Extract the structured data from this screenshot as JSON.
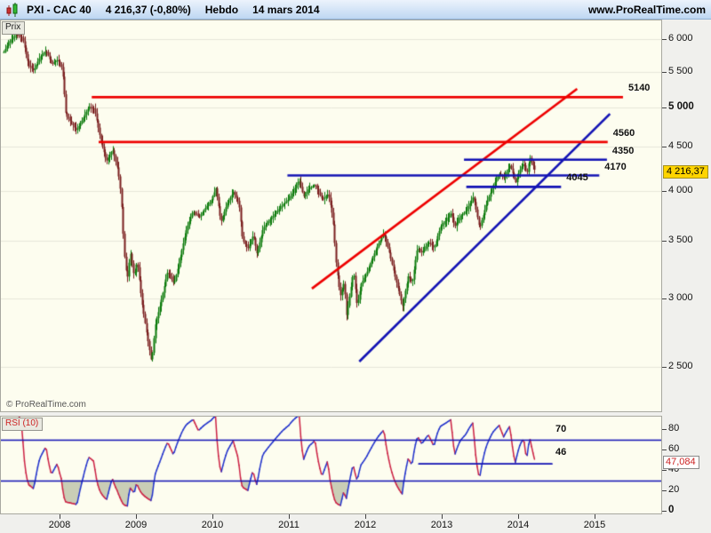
{
  "title_bar": {
    "icon": "candlestick-icon",
    "symbol": "PXI - CAC 40",
    "price_change": "4 216,37 (-0,80%)",
    "timeframe": "Hebdo",
    "date": "14 mars 2014",
    "website": "www.ProRealTime.com"
  },
  "price_panel": {
    "tab_label": "Prix",
    "copyright": "© ProRealTime.com",
    "current_price_label": "4 216,37"
  },
  "rsi_panel": {
    "tab_label": "RSI (10)",
    "current_value_label": "47,084"
  },
  "chart_data": {
    "type": "candlestick",
    "title": "PXI - CAC 40 Hebdo (weekly) with trend lines, horizontal levels and RSI(10)",
    "instrument": "CAC 40",
    "timeframe": "weekly",
    "as_of": "14 mars 2014",
    "last_close": 4216.37,
    "colors": {
      "candle_up": "#0a7a0a",
      "candle_down": "#7a1e1e",
      "blue_line": "#1212b4",
      "red_line": "#ee0000",
      "rsi_up": "#2233cc",
      "rsi_down": "#cc2244",
      "rsi_oversold_fill": "rgba(150,160,125,0.5)",
      "grid": "#e7e7da",
      "badge_bg": "#ffd400"
    },
    "x_axis": {
      "range": [
        2007.22,
        2015.88
      ],
      "ticks": [
        {
          "label": "2008",
          "value": 2008
        },
        {
          "label": "2009",
          "value": 2009
        },
        {
          "label": "2010",
          "value": 2010
        },
        {
          "label": "2011",
          "value": 2011
        },
        {
          "label": "2012",
          "value": 2012
        },
        {
          "label": "2013",
          "value": 2013
        },
        {
          "label": "2014",
          "value": 2014
        },
        {
          "label": "2015",
          "value": 2015
        }
      ]
    },
    "y_axis": {
      "scale": "log",
      "range": [
        2330,
        6400
      ],
      "grid": true,
      "ticks": [
        {
          "label": "6 000",
          "value": 6000,
          "bold": false
        },
        {
          "label": "5 500",
          "value": 5500,
          "bold": false
        },
        {
          "label": "5 000",
          "value": 5000,
          "bold": true
        },
        {
          "label": "4 500",
          "value": 4500,
          "bold": false
        },
        {
          "label": "4 000",
          "value": 4000,
          "bold": false
        },
        {
          "label": "3 500",
          "value": 3500,
          "bold": false
        },
        {
          "label": "3 000",
          "value": 3000,
          "bold": false
        },
        {
          "label": "2 500",
          "value": 2500,
          "bold": false
        }
      ]
    },
    "price_anchors": [
      [
        2007.26,
        5800
      ],
      [
        2007.32,
        5950
      ],
      [
        2007.42,
        6080
      ],
      [
        2007.5,
        6020
      ],
      [
        2007.58,
        5600
      ],
      [
        2007.65,
        5520
      ],
      [
        2007.73,
        5720
      ],
      [
        2007.81,
        5820
      ],
      [
        2007.88,
        5620
      ],
      [
        2007.96,
        5680
      ],
      [
        2008.02,
        5550
      ],
      [
        2008.07,
        4900
      ],
      [
        2008.13,
        4820
      ],
      [
        2008.21,
        4700
      ],
      [
        2008.29,
        4850
      ],
      [
        2008.37,
        5010
      ],
      [
        2008.44,
        4980
      ],
      [
        2008.52,
        4600
      ],
      [
        2008.6,
        4330
      ],
      [
        2008.68,
        4470
      ],
      [
        2008.75,
        4230
      ],
      [
        2008.79,
        3950
      ],
      [
        2008.83,
        3400
      ],
      [
        2008.87,
        3150
      ],
      [
        2008.91,
        3400
      ],
      [
        2008.96,
        3180
      ],
      [
        2009.0,
        3320
      ],
      [
        2009.06,
        2980
      ],
      [
        2009.12,
        2760
      ],
      [
        2009.19,
        2530
      ],
      [
        2009.24,
        2800
      ],
      [
        2009.31,
        2970
      ],
      [
        2009.4,
        3230
      ],
      [
        2009.48,
        3120
      ],
      [
        2009.56,
        3330
      ],
      [
        2009.65,
        3620
      ],
      [
        2009.73,
        3790
      ],
      [
        2009.81,
        3730
      ],
      [
        2009.89,
        3820
      ],
      [
        2009.97,
        3900
      ],
      [
        2010.03,
        4030
      ],
      [
        2010.1,
        3680
      ],
      [
        2010.18,
        3870
      ],
      [
        2010.26,
        3990
      ],
      [
        2010.33,
        3880
      ],
      [
        2010.38,
        3510
      ],
      [
        2010.45,
        3430
      ],
      [
        2010.52,
        3560
      ],
      [
        2010.57,
        3380
      ],
      [
        2010.65,
        3620
      ],
      [
        2010.73,
        3700
      ],
      [
        2010.82,
        3780
      ],
      [
        2010.91,
        3860
      ],
      [
        2010.99,
        3920
      ],
      [
        2011.06,
        4020
      ],
      [
        2011.12,
        4120
      ],
      [
        2011.18,
        3940
      ],
      [
        2011.25,
        4030
      ],
      [
        2011.33,
        4070
      ],
      [
        2011.42,
        3910
      ],
      [
        2011.5,
        3970
      ],
      [
        2011.56,
        3730
      ],
      [
        2011.61,
        3270
      ],
      [
        2011.66,
        3020
      ],
      [
        2011.71,
        3140
      ],
      [
        2011.74,
        2870
      ],
      [
        2011.78,
        3020
      ],
      [
        2011.83,
        3230
      ],
      [
        2011.88,
        2940
      ],
      [
        2011.93,
        3120
      ],
      [
        2012.0,
        3210
      ],
      [
        2012.09,
        3360
      ],
      [
        2012.17,
        3490
      ],
      [
        2012.23,
        3570
      ],
      [
        2012.3,
        3390
      ],
      [
        2012.38,
        3170
      ],
      [
        2012.44,
        3020
      ],
      [
        2012.47,
        2940
      ],
      [
        2012.55,
        3190
      ],
      [
        2012.6,
        3130
      ],
      [
        2012.67,
        3440
      ],
      [
        2012.73,
        3390
      ],
      [
        2012.81,
        3490
      ],
      [
        2012.89,
        3440
      ],
      [
        2012.97,
        3640
      ],
      [
        2013.05,
        3710
      ],
      [
        2013.11,
        3770
      ],
      [
        2013.16,
        3640
      ],
      [
        2013.23,
        3740
      ],
      [
        2013.31,
        3800
      ],
      [
        2013.4,
        3940
      ],
      [
        2013.48,
        3620
      ],
      [
        2013.57,
        3860
      ],
      [
        2013.66,
        4060
      ],
      [
        2013.74,
        4190
      ],
      [
        2013.8,
        4140
      ],
      [
        2013.88,
        4290
      ],
      [
        2013.95,
        4090
      ],
      [
        2014.02,
        4260
      ],
      [
        2014.06,
        4310
      ],
      [
        2014.1,
        4180
      ],
      [
        2014.14,
        4380
      ],
      [
        2014.18,
        4290
      ],
      [
        2014.21,
        4216.37
      ]
    ],
    "annotations": {
      "horizontal_lines": [
        {
          "label": "5140",
          "value": 5140,
          "x1": 2008.41,
          "x2": 2015.36,
          "color": "#ee0000"
        },
        {
          "label": "4560",
          "value": 4560,
          "x1": 2008.5,
          "x2": 2015.16,
          "color": "#ee0000"
        },
        {
          "label": "4350",
          "value": 4350,
          "x1": 2013.28,
          "x2": 2015.15,
          "color": "#1212b4"
        },
        {
          "label": "4170",
          "value": 4170,
          "x1": 2010.97,
          "x2": 2015.05,
          "color": "#1212b4"
        },
        {
          "label": "4045",
          "value": 4045,
          "x1": 2013.31,
          "x2": 2014.55,
          "color": "#1212b4"
        }
      ],
      "trend_lines": [
        {
          "name": "rising-red-trendline",
          "color": "#ee0000",
          "x1": 2011.29,
          "y1": 3083,
          "x2": 2014.76,
          "y2": 5255
        },
        {
          "name": "rising-blue-trendline",
          "color": "#1212b4",
          "x1": 2011.91,
          "y1": 2537,
          "x2": 2015.19,
          "y2": 4917
        }
      ]
    },
    "rsi": {
      "label": "RSI (10)",
      "period": 10,
      "last_value": 47.084,
      "y_range": [
        0,
        100
      ],
      "level_lines": [
        {
          "value": 70,
          "label": "70"
        },
        {
          "value": 30,
          "label": ""
        }
      ],
      "support_line": {
        "label": "46",
        "value": 46,
        "x1": 2012.69,
        "x2": 2014.43
      },
      "axis_ticks": [
        {
          "label": "80",
          "value": 80,
          "bold": false
        },
        {
          "label": "60",
          "value": 60,
          "bold": false
        },
        {
          "label": "40",
          "value": 40,
          "bold": false
        },
        {
          "label": "20",
          "value": 20,
          "bold": false
        },
        {
          "label": "0",
          "value": 0,
          "bold": true
        }
      ]
    }
  }
}
